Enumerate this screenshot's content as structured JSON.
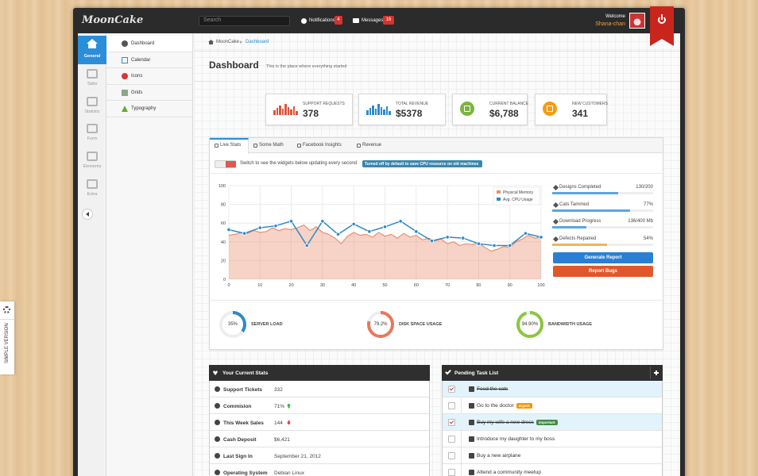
{
  "header": {
    "logo": "MoonCake",
    "search_placeholder": "Search",
    "notifications": {
      "label": "Notifications",
      "count": 4
    },
    "messages": {
      "label": "Messages",
      "count": 16
    },
    "welcome": "Welcome",
    "user": "Shana-chan"
  },
  "sidebar": {
    "items": [
      "General",
      "Table",
      "Statistic",
      "Form",
      "Elements",
      "Extra"
    ],
    "active": 0
  },
  "submenu": {
    "items": [
      "Dashboard",
      "Calendar",
      "Icons",
      "Grids",
      "Typography"
    ],
    "active": 0
  },
  "breadcrumb": [
    "MoonCake",
    "Dashboard"
  ],
  "page": {
    "title": "Dashboard",
    "subtitle": "This is the place where everything started"
  },
  "stats": [
    {
      "label": "SUPPORT REQUESTS",
      "value": 378,
      "color": "#e0543c"
    },
    {
      "label": "TOTAL REVENUE",
      "value": "$5378",
      "color": "#2e8ac9"
    },
    {
      "label": "CURRENT BALANCE",
      "value": "$6,788",
      "color": "#7cb342"
    },
    {
      "label": "NEW CUSTOMERS",
      "value": 341,
      "color": "#f39c12"
    }
  ],
  "tabs": {
    "items": [
      "Live Stats",
      "Some Math",
      "Facebook Insights",
      "Revenue"
    ],
    "active": 0
  },
  "toggle": {
    "text": "Switch to see the widgets below updating every second",
    "badge": "Turned off by default to save CPU resource on old machines"
  },
  "chart_data": {
    "type": "line",
    "xlim": [
      0,
      100
    ],
    "ylim": [
      0,
      100
    ],
    "xticks": [
      0,
      10,
      20,
      30,
      40,
      50,
      60,
      70,
      80,
      90,
      100
    ],
    "yticks": [
      0,
      20,
      40,
      60,
      80,
      100
    ],
    "grid": true,
    "legend": "top-right",
    "series": [
      {
        "name": "Physical Memory",
        "color": "#ec8f72",
        "fill": true,
        "markers": false,
        "x": [
          0,
          2,
          4,
          6,
          8,
          10,
          12,
          14,
          16,
          18,
          20,
          22,
          24,
          26,
          28,
          30,
          32,
          34,
          36,
          38,
          40,
          42,
          44,
          46,
          48,
          50,
          52,
          54,
          56,
          58,
          60,
          62,
          64,
          66,
          68,
          70,
          72,
          74,
          76,
          78,
          80,
          82,
          84,
          86,
          88,
          90,
          92,
          94,
          96,
          98,
          100
        ],
        "values": [
          47,
          48,
          50,
          49,
          52,
          50,
          51,
          55,
          52,
          54,
          53,
          55,
          58,
          52,
          56,
          50,
          48,
          44,
          38,
          46,
          50,
          47,
          48,
          45,
          50,
          46,
          48,
          44,
          49,
          45,
          47,
          42,
          44,
          41,
          43,
          38,
          40,
          36,
          38,
          37,
          39,
          34,
          30,
          32,
          35,
          34,
          40,
          43,
          47,
          44,
          45
        ]
      },
      {
        "name": "Avg. CPU Usage",
        "color": "#2e8ac9",
        "fill": false,
        "markers": true,
        "x": [
          0,
          5,
          10,
          15,
          20,
          25,
          30,
          35,
          40,
          45,
          50,
          55,
          60,
          65,
          70,
          75,
          80,
          85,
          90,
          95,
          100
        ],
        "values": [
          53,
          49,
          55,
          57,
          62,
          36,
          62,
          48,
          59,
          51,
          56,
          62,
          51,
          41,
          45,
          44,
          38,
          36,
          36,
          49,
          45
        ]
      }
    ]
  },
  "progress": [
    {
      "label": "Designs Completed",
      "value_label": "130/200",
      "value": 65,
      "color": "#5aa6e0"
    },
    {
      "label": "Cats Tammed",
      "value_label": "77%",
      "value": 77,
      "color": "#5aa6e0"
    },
    {
      "label": "Download Progress",
      "value_label": "136/400 Mb",
      "value": 34,
      "color": "#5aa6e0"
    },
    {
      "label": "Defects Repaired",
      "value_label": "54%",
      "value": 54,
      "color": "#f0b35a"
    }
  ],
  "buttons": [
    {
      "label": "Generate Report",
      "color": "#2a7fd4"
    },
    {
      "label": "Report Bugs",
      "color": "#e0582a"
    }
  ],
  "gauges": [
    {
      "value": 35,
      "value_label": "35%",
      "label": "SERVER LOAD",
      "color": "#2e8ac9"
    },
    {
      "value": 79.2,
      "value_label": "79.2%",
      "label": "DISK SPACE USAGE",
      "color": "#e8785a"
    },
    {
      "value": 94.9,
      "value_label": "94.90%",
      "label": "BANDWIDTH USAGE",
      "color": "#8cc63f"
    }
  ],
  "current_stats": {
    "title": "Your Current Stats",
    "rows": [
      {
        "label": "Support Tickets",
        "value": 332
      },
      {
        "label": "Commision",
        "value": "71%",
        "trend": "up"
      },
      {
        "label": "This Week Sales",
        "value": 144,
        "trend": "down"
      },
      {
        "label": "Cash Deposit",
        "value": "$6,421"
      },
      {
        "label": "Last Sign In",
        "value": "September 21, 2012"
      },
      {
        "label": "Operating System",
        "value": "Debian Linux"
      }
    ]
  },
  "tasks": {
    "title": "Pending Task List",
    "items": [
      {
        "text": "Feed the cats",
        "done": true
      },
      {
        "text": "Go to the doctor",
        "done": false,
        "tag": "urgent",
        "tag_color": "#f89406"
      },
      {
        "text": "Buy my wife a new dress",
        "done": true,
        "tag": "important",
        "tag_color": "#468847"
      },
      {
        "text": "Introduce my daughter to my boss",
        "done": false
      },
      {
        "text": "Buy a new airplane",
        "done": false
      },
      {
        "text": "Attend a community meetup",
        "done": false
      }
    ]
  },
  "side_tab": "SIMPLE VERSION"
}
